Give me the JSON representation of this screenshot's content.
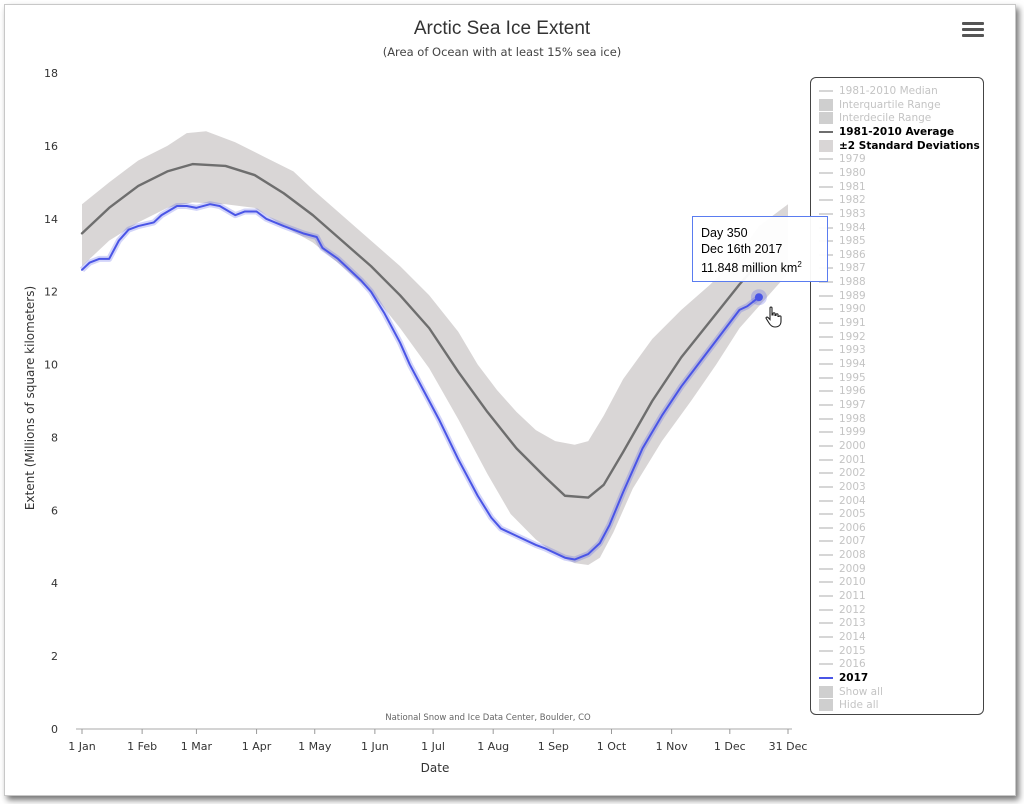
{
  "chart_data": {
    "type": "line",
    "title": "Arctic Sea Ice Extent",
    "subtitle": "(Area of Ocean with at least 15% sea ice)",
    "xlabel": "Date",
    "ylabel": "Extent (Millions of square kilometers)",
    "xlim": [
      1,
      365
    ],
    "ylim": [
      0,
      18
    ],
    "yticks": [
      0,
      2,
      4,
      6,
      8,
      10,
      12,
      14,
      16,
      18
    ],
    "xticks": [
      {
        "day": 1,
        "label": "1 Jan"
      },
      {
        "day": 32,
        "label": "1 Feb"
      },
      {
        "day": 60,
        "label": "1 Mar"
      },
      {
        "day": 91,
        "label": "1 Apr"
      },
      {
        "day": 121,
        "label": "1 May"
      },
      {
        "day": 152,
        "label": "1 Jun"
      },
      {
        "day": 182,
        "label": "1 Jul"
      },
      {
        "day": 213,
        "label": "1 Aug"
      },
      {
        "day": 244,
        "label": "1 Sep"
      },
      {
        "day": 274,
        "label": "1 Oct"
      },
      {
        "day": 305,
        "label": "1 Nov"
      },
      {
        "day": 335,
        "label": "1 Dec"
      },
      {
        "day": 365,
        "label": "31 Dec"
      }
    ],
    "grid": false,
    "legend_position": "right",
    "credit": "National Snow and Ice Data Center, Boulder, CO",
    "series": [
      {
        "name": "1981-2010 Average",
        "color": "#6e6e6e",
        "points": [
          [
            1,
            13.6
          ],
          [
            15,
            14.3
          ],
          [
            30,
            14.9
          ],
          [
            45,
            15.3
          ],
          [
            58,
            15.5
          ],
          [
            75,
            15.45
          ],
          [
            90,
            15.2
          ],
          [
            105,
            14.7
          ],
          [
            120,
            14.1
          ],
          [
            135,
            13.4
          ],
          [
            150,
            12.7
          ],
          [
            165,
            11.9
          ],
          [
            180,
            11.0
          ],
          [
            195,
            9.8
          ],
          [
            210,
            8.7
          ],
          [
            225,
            7.7
          ],
          [
            240,
            6.9
          ],
          [
            250,
            6.4
          ],
          [
            262,
            6.35
          ],
          [
            270,
            6.7
          ],
          [
            280,
            7.6
          ],
          [
            295,
            9.0
          ],
          [
            310,
            10.2
          ],
          [
            325,
            11.2
          ],
          [
            340,
            12.2
          ],
          [
            350,
            12.8
          ]
        ]
      },
      {
        "name": "2017",
        "color": "#4a55e6",
        "points": [
          [
            1,
            12.6
          ],
          [
            5,
            12.8
          ],
          [
            10,
            12.9
          ],
          [
            15,
            12.9
          ],
          [
            20,
            13.4
          ],
          [
            25,
            13.7
          ],
          [
            30,
            13.8
          ],
          [
            38,
            13.9
          ],
          [
            42,
            14.1
          ],
          [
            50,
            14.35
          ],
          [
            55,
            14.35
          ],
          [
            60,
            14.3
          ],
          [
            67,
            14.4
          ],
          [
            72,
            14.35
          ],
          [
            80,
            14.1
          ],
          [
            85,
            14.2
          ],
          [
            91,
            14.2
          ],
          [
            96,
            14.0
          ],
          [
            105,
            13.8
          ],
          [
            115,
            13.6
          ],
          [
            122,
            13.5
          ],
          [
            125,
            13.2
          ],
          [
            133,
            12.9
          ],
          [
            145,
            12.3
          ],
          [
            150,
            12.0
          ],
          [
            157,
            11.4
          ],
          [
            165,
            10.6
          ],
          [
            170,
            10.0
          ],
          [
            180,
            9.0
          ],
          [
            185,
            8.5
          ],
          [
            195,
            7.4
          ],
          [
            205,
            6.4
          ],
          [
            212,
            5.8
          ],
          [
            217,
            5.5
          ],
          [
            225,
            5.3
          ],
          [
            235,
            5.05
          ],
          [
            240,
            4.95
          ],
          [
            250,
            4.7
          ],
          [
            255,
            4.65
          ],
          [
            262,
            4.8
          ],
          [
            268,
            5.1
          ],
          [
            273,
            5.6
          ],
          [
            280,
            6.5
          ],
          [
            290,
            7.7
          ],
          [
            300,
            8.6
          ],
          [
            310,
            9.4
          ],
          [
            320,
            10.1
          ],
          [
            330,
            10.8
          ],
          [
            340,
            11.5
          ],
          [
            344,
            11.6
          ],
          [
            350,
            11.848
          ]
        ]
      }
    ],
    "band": {
      "name": "±2 Standard Deviations",
      "color": "#d9d6d6",
      "upper": [
        [
          1,
          14.4
        ],
        [
          15,
          15.0
        ],
        [
          30,
          15.6
        ],
        [
          45,
          16.0
        ],
        [
          55,
          16.35
        ],
        [
          65,
          16.4
        ],
        [
          80,
          16.1
        ],
        [
          95,
          15.7
        ],
        [
          110,
          15.3
        ],
        [
          120,
          14.8
        ],
        [
          135,
          14.1
        ],
        [
          150,
          13.4
        ],
        [
          165,
          12.7
        ],
        [
          180,
          11.9
        ],
        [
          195,
          10.9
        ],
        [
          205,
          10.0
        ],
        [
          215,
          9.3
        ],
        [
          225,
          8.7
        ],
        [
          235,
          8.2
        ],
        [
          245,
          7.9
        ],
        [
          255,
          7.8
        ],
        [
          262,
          7.9
        ],
        [
          270,
          8.6
        ],
        [
          280,
          9.6
        ],
        [
          295,
          10.7
        ],
        [
          310,
          11.5
        ],
        [
          325,
          12.2
        ],
        [
          338,
          12.9
        ],
        [
          350,
          13.8
        ],
        [
          360,
          14.2
        ],
        [
          365,
          14.4
        ]
      ],
      "lower": [
        [
          1,
          12.7
        ],
        [
          15,
          13.4
        ],
        [
          30,
          13.9
        ],
        [
          45,
          14.3
        ],
        [
          58,
          14.45
        ],
        [
          75,
          14.4
        ],
        [
          90,
          14.3
        ],
        [
          105,
          13.8
        ],
        [
          120,
          13.35
        ],
        [
          135,
          12.7
        ],
        [
          150,
          12.0
        ],
        [
          165,
          11.0
        ],
        [
          180,
          9.9
        ],
        [
          195,
          8.5
        ],
        [
          210,
          7.0
        ],
        [
          222,
          5.9
        ],
        [
          235,
          5.2
        ],
        [
          245,
          4.8
        ],
        [
          255,
          4.55
        ],
        [
          262,
          4.5
        ],
        [
          268,
          4.7
        ],
        [
          275,
          5.4
        ],
        [
          285,
          6.6
        ],
        [
          300,
          7.9
        ],
        [
          315,
          9.0
        ],
        [
          328,
          10.0
        ],
        [
          340,
          11.0
        ],
        [
          350,
          11.6
        ],
        [
          360,
          12.2
        ],
        [
          365,
          12.5
        ]
      ]
    },
    "tooltip": {
      "line1": "Day 350",
      "line2": "Dec 16th 2017",
      "line3_value": "11.848 million km",
      "line3_sup": "2",
      "point": [
        350,
        11.848
      ]
    }
  },
  "legend": {
    "items": [
      {
        "label": "1981-2010 Median",
        "kind": "line",
        "active": false
      },
      {
        "label": "Interquartile Range",
        "kind": "box",
        "active": false
      },
      {
        "label": "Interdecile Range",
        "kind": "box",
        "active": false
      },
      {
        "label": "1981-2010 Average",
        "kind": "line",
        "active": true,
        "color": "#6e6e6e"
      },
      {
        "label": "±2 Standard Deviations",
        "kind": "box",
        "active": true,
        "color": "#d9d6d6"
      },
      {
        "label": "1979",
        "kind": "line",
        "active": false
      },
      {
        "label": "1980",
        "kind": "line",
        "active": false
      },
      {
        "label": "1981",
        "kind": "line",
        "active": false
      },
      {
        "label": "1982",
        "kind": "line",
        "active": false
      },
      {
        "label": "1983",
        "kind": "line",
        "active": false
      },
      {
        "label": "1984",
        "kind": "line",
        "active": false
      },
      {
        "label": "1985",
        "kind": "line",
        "active": false
      },
      {
        "label": "1986",
        "kind": "line",
        "active": false
      },
      {
        "label": "1987",
        "kind": "line",
        "active": false
      },
      {
        "label": "1988",
        "kind": "line",
        "active": false
      },
      {
        "label": "1989",
        "kind": "line",
        "active": false
      },
      {
        "label": "1990",
        "kind": "line",
        "active": false
      },
      {
        "label": "1991",
        "kind": "line",
        "active": false
      },
      {
        "label": "1992",
        "kind": "line",
        "active": false
      },
      {
        "label": "1993",
        "kind": "line",
        "active": false
      },
      {
        "label": "1994",
        "kind": "line",
        "active": false
      },
      {
        "label": "1995",
        "kind": "line",
        "active": false
      },
      {
        "label": "1996",
        "kind": "line",
        "active": false
      },
      {
        "label": "1997",
        "kind": "line",
        "active": false
      },
      {
        "label": "1998",
        "kind": "line",
        "active": false
      },
      {
        "label": "1999",
        "kind": "line",
        "active": false
      },
      {
        "label": "2000",
        "kind": "line",
        "active": false
      },
      {
        "label": "2001",
        "kind": "line",
        "active": false
      },
      {
        "label": "2002",
        "kind": "line",
        "active": false
      },
      {
        "label": "2003",
        "kind": "line",
        "active": false
      },
      {
        "label": "2004",
        "kind": "line",
        "active": false
      },
      {
        "label": "2005",
        "kind": "line",
        "active": false
      },
      {
        "label": "2006",
        "kind": "line",
        "active": false
      },
      {
        "label": "2007",
        "kind": "line",
        "active": false
      },
      {
        "label": "2008",
        "kind": "line",
        "active": false
      },
      {
        "label": "2009",
        "kind": "line",
        "active": false
      },
      {
        "label": "2010",
        "kind": "line",
        "active": false
      },
      {
        "label": "2011",
        "kind": "line",
        "active": false
      },
      {
        "label": "2012",
        "kind": "line",
        "active": false
      },
      {
        "label": "2013",
        "kind": "line",
        "active": false
      },
      {
        "label": "2014",
        "kind": "line",
        "active": false
      },
      {
        "label": "2015",
        "kind": "line",
        "active": false
      },
      {
        "label": "2016",
        "kind": "line",
        "active": false
      },
      {
        "label": "2017",
        "kind": "line",
        "active": true,
        "color": "#4a55e6"
      },
      {
        "label": "Show all",
        "kind": "box",
        "active": false
      },
      {
        "label": "Hide all",
        "kind": "box",
        "active": false
      }
    ]
  },
  "icons": {
    "menu": "hamburger-menu-icon",
    "cursor": "hand-pointer-icon"
  },
  "colors": {
    "inactive": "#c4c4c4",
    "active_text": "#000000",
    "axis": "#555555"
  }
}
